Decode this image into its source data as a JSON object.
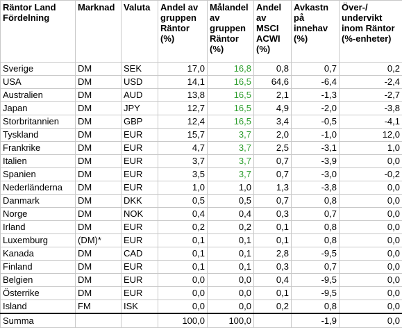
{
  "headers": {
    "land": "Räntor Land Fördelning",
    "marknad": "Marknad",
    "valuta": "Valuta",
    "andel": "Andel av gruppen Räntor (%)",
    "malandel": "Målandel av gruppen Räntor (%)",
    "msci": "Andel av MSCI ACWI (%)",
    "avkastning": "Avkastn på innehav (%)",
    "over": "Över-/ undervikt inom Räntor (%-enheter)"
  },
  "rows": [
    {
      "land": "Sverige",
      "marknad": "DM",
      "valuta": "SEK",
      "andel": "17,0",
      "malandel": "16,8",
      "msci": "0,8",
      "avkastning": "0,7",
      "over": "0,2"
    },
    {
      "land": "USA",
      "marknad": "DM",
      "valuta": "USD",
      "andel": "14,1",
      "malandel": "16,5",
      "msci": "64,6",
      "avkastning": "-6,4",
      "over": "-2,4"
    },
    {
      "land": "Australien",
      "marknad": "DM",
      "valuta": "AUD",
      "andel": "13,8",
      "malandel": "16,5",
      "msci": "2,1",
      "avkastning": "-1,3",
      "over": "-2,7"
    },
    {
      "land": "Japan",
      "marknad": "DM",
      "valuta": "JPY",
      "andel": "12,7",
      "malandel": "16,5",
      "msci": "4,9",
      "avkastning": "-2,0",
      "over": "-3,8"
    },
    {
      "land": "Storbritannien",
      "marknad": "DM",
      "valuta": "GBP",
      "andel": "12,4",
      "malandel": "16,5",
      "msci": "3,4",
      "avkastning": "-0,5",
      "over": "-4,1"
    },
    {
      "land": "Tyskland",
      "marknad": "DM",
      "valuta": "EUR",
      "andel": "15,7",
      "malandel": "3,7",
      "msci": "2,0",
      "avkastning": "-1,0",
      "over": "12,0"
    },
    {
      "land": "Frankrike",
      "marknad": "DM",
      "valuta": "EUR",
      "andel": "4,7",
      "malandel": "3,7",
      "msci": "2,5",
      "avkastning": "-3,1",
      "over": "1,0"
    },
    {
      "land": "Italien",
      "marknad": "DM",
      "valuta": "EUR",
      "andel": "3,7",
      "malandel": "3,7",
      "msci": "0,7",
      "avkastning": "-3,9",
      "over": "0,0"
    },
    {
      "land": "Spanien",
      "marknad": "DM",
      "valuta": "EUR",
      "andel": "3,5",
      "malandel": "3,7",
      "msci": "0,7",
      "avkastning": "-3,0",
      "over": "-0,2"
    },
    {
      "land": "Nederländerna",
      "marknad": "DM",
      "valuta": "EUR",
      "andel": "1,0",
      "malandel": "1,0",
      "msci": "1,3",
      "avkastning": "-3,8",
      "over": "0,0"
    },
    {
      "land": "Danmark",
      "marknad": "DM",
      "valuta": "DKK",
      "andel": "0,5",
      "malandel": "0,5",
      "msci": "0,7",
      "avkastning": "0,8",
      "over": "0,0"
    },
    {
      "land": "Norge",
      "marknad": "DM",
      "valuta": "NOK",
      "andel": "0,4",
      "malandel": "0,4",
      "msci": "0,3",
      "avkastning": "0,7",
      "over": "0,0"
    },
    {
      "land": "Irland",
      "marknad": "DM",
      "valuta": "EUR",
      "andel": "0,2",
      "malandel": "0,2",
      "msci": "0,1",
      "avkastning": "0,8",
      "over": "0,0"
    },
    {
      "land": "Luxemburg",
      "marknad": "(DM)*",
      "valuta": "EUR",
      "andel": "0,1",
      "malandel": "0,1",
      "msci": "0,1",
      "avkastning": "0,8",
      "over": "0,0"
    },
    {
      "land": "Kanada",
      "marknad": "DM",
      "valuta": "CAD",
      "andel": "0,1",
      "malandel": "0,1",
      "msci": "2,8",
      "avkastning": "-9,5",
      "over": "0,0"
    },
    {
      "land": "Finland",
      "marknad": "DM",
      "valuta": "EUR",
      "andel": "0,1",
      "malandel": "0,1",
      "msci": "0,3",
      "avkastning": "0,7",
      "over": "0,0"
    },
    {
      "land": "Belgien",
      "marknad": "DM",
      "valuta": "EUR",
      "andel": "0,0",
      "malandel": "0,0",
      "msci": "0,4",
      "avkastning": "-9,5",
      "over": "0,0"
    },
    {
      "land": "Österrike",
      "marknad": "DM",
      "valuta": "EUR",
      "andel": "0,0",
      "malandel": "0,0",
      "msci": "0,1",
      "avkastning": "-9,5",
      "over": "0,0"
    },
    {
      "land": "Island",
      "marknad": "FM",
      "valuta": "ISK",
      "andel": "0,0",
      "malandel": "0,0",
      "msci": "0,2",
      "avkastning": "0,8",
      "over": "0,0"
    }
  ],
  "green_malandel_rows": [
    0,
    1,
    2,
    3,
    4,
    5,
    6,
    7,
    8
  ],
  "summa": {
    "land": "Summa",
    "marknad": "",
    "valuta": "",
    "andel": "100,0",
    "malandel": "100,0",
    "msci": "",
    "avkastning": "-1,9",
    "over": "0,0"
  },
  "colors": {
    "highlight_text": "#2e9e2e",
    "grid": "#c8c8c8",
    "summa_rule": "#000000"
  }
}
